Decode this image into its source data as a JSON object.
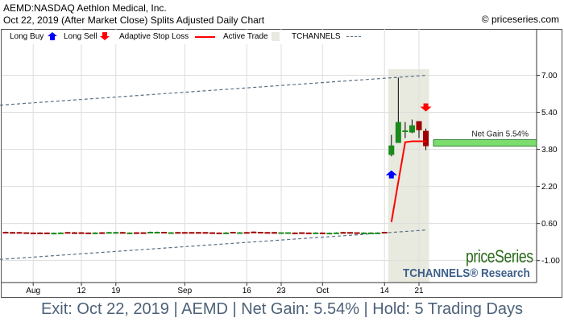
{
  "header": {
    "title": "AEMD:NASDAQ Aethlon Medical, Inc.",
    "subtitle": "Oct 22, 2019 (After Market Close)  Splits Adjusted Daily Chart",
    "copyright": "© priceseries.com"
  },
  "legend": {
    "long_buy": "Long Buy",
    "long_sell": "Long Sell",
    "stop_loss": "Adaptive Stop Loss",
    "active_trade": "Active Trade",
    "tchannels": "TCHANNELS"
  },
  "watermark": {
    "brand": "priceSeries",
    "research": "TCHANNELS® Research"
  },
  "caption": "Exit: Oct 22, 2019 | AEMD | Net Gain: 5.54% | Hold: 5 Trading Days",
  "colors": {
    "up": "#1a8a1a",
    "down": "#a00000",
    "stop": "#ff0000",
    "buy": "#0000ff",
    "sell": "#ff0000",
    "active": "#e8eadf",
    "channel": "#5a6e84",
    "gain_bar": "#7ddc6e"
  },
  "chart_data": {
    "type": "candlestick",
    "ylim": [
      -1.95,
      9.0
    ],
    "y_ticks": [
      "7.00",
      "5.40",
      "3.80",
      "2.20",
      "0.60",
      "-1.00"
    ],
    "x_ticks": [
      {
        "date": "2019-08-01",
        "label": "Aug"
      },
      {
        "date": "2019-08-12",
        "label": "12"
      },
      {
        "date": "2019-08-19",
        "label": "19"
      },
      {
        "date": "2019-09-03",
        "label": "Sep"
      },
      {
        "date": "2019-09-16",
        "label": "16"
      },
      {
        "date": "2019-09-23",
        "label": "23"
      },
      {
        "date": "2019-10-01",
        "label": "Oct"
      },
      {
        "date": "2019-10-14",
        "label": "14"
      },
      {
        "date": "2019-10-21",
        "label": "21"
      }
    ],
    "grid": true,
    "candles_columns": [
      "date",
      "open",
      "high",
      "low",
      "close"
    ],
    "candles": [
      [
        "2019-07-26",
        0.24,
        0.25,
        0.22,
        0.23
      ],
      [
        "2019-07-29",
        0.23,
        0.24,
        0.21,
        0.22
      ],
      [
        "2019-07-30",
        0.23,
        0.23,
        0.21,
        0.21
      ],
      [
        "2019-07-31",
        0.22,
        0.22,
        0.18,
        0.19
      ],
      [
        "2019-08-01",
        0.21,
        0.21,
        0.16,
        0.17
      ],
      [
        "2019-08-02",
        0.21,
        0.22,
        0.19,
        0.2
      ],
      [
        "2019-08-05",
        0.21,
        0.21,
        0.19,
        0.2
      ],
      [
        "2019-08-06",
        0.19,
        0.21,
        0.19,
        0.2
      ],
      [
        "2019-08-07",
        0.2,
        0.22,
        0.2,
        0.21
      ],
      [
        "2019-08-08",
        0.23,
        0.23,
        0.2,
        0.21
      ],
      [
        "2019-08-09",
        0.22,
        0.23,
        0.21,
        0.21
      ],
      [
        "2019-08-12",
        0.22,
        0.23,
        0.2,
        0.21
      ],
      [
        "2019-08-13",
        0.21,
        0.21,
        0.17,
        0.18
      ],
      [
        "2019-08-14",
        0.2,
        0.22,
        0.2,
        0.21
      ],
      [
        "2019-08-15",
        0.22,
        0.23,
        0.21,
        0.21
      ],
      [
        "2019-08-16",
        0.21,
        0.24,
        0.21,
        0.23
      ],
      [
        "2019-08-19",
        0.22,
        0.24,
        0.22,
        0.23
      ],
      [
        "2019-08-20",
        0.23,
        0.24,
        0.21,
        0.22
      ],
      [
        "2019-08-21",
        0.2,
        0.22,
        0.2,
        0.21
      ],
      [
        "2019-08-22",
        0.22,
        0.22,
        0.19,
        0.2
      ],
      [
        "2019-08-23",
        0.22,
        0.22,
        0.19,
        0.2
      ],
      [
        "2019-08-26",
        0.22,
        0.25,
        0.22,
        0.24
      ],
      [
        "2019-08-27",
        0.22,
        0.25,
        0.22,
        0.24
      ],
      [
        "2019-08-28",
        0.24,
        0.24,
        0.21,
        0.22
      ],
      [
        "2019-08-29",
        0.21,
        0.23,
        0.21,
        0.22
      ],
      [
        "2019-08-30",
        0.23,
        0.23,
        0.21,
        0.22
      ],
      [
        "2019-09-03",
        0.23,
        0.23,
        0.21,
        0.22
      ],
      [
        "2019-09-04",
        0.23,
        0.23,
        0.2,
        0.21
      ],
      [
        "2019-09-05",
        0.23,
        0.23,
        0.21,
        0.22
      ],
      [
        "2019-09-06",
        0.23,
        0.23,
        0.21,
        0.22
      ],
      [
        "2019-09-09",
        0.22,
        0.22,
        0.18,
        0.19
      ],
      [
        "2019-09-10",
        0.21,
        0.21,
        0.19,
        0.2
      ],
      [
        "2019-09-11",
        0.2,
        0.23,
        0.2,
        0.21
      ],
      [
        "2019-09-12",
        0.24,
        0.24,
        0.22,
        0.22
      ],
      [
        "2019-09-13",
        0.21,
        0.23,
        0.21,
        0.22
      ],
      [
        "2019-09-16",
        0.23,
        0.23,
        0.21,
        0.22
      ],
      [
        "2019-09-17",
        0.25,
        0.25,
        0.23,
        0.24
      ],
      [
        "2019-09-18",
        0.24,
        0.24,
        0.2,
        0.21
      ],
      [
        "2019-09-19",
        0.23,
        0.23,
        0.21,
        0.22
      ],
      [
        "2019-09-20",
        0.23,
        0.24,
        0.21,
        0.22
      ],
      [
        "2019-09-23",
        0.21,
        0.22,
        0.21,
        0.22
      ],
      [
        "2019-09-24",
        0.21,
        0.22,
        0.21,
        0.22
      ],
      [
        "2019-09-25",
        0.21,
        0.21,
        0.2,
        0.2
      ],
      [
        "2019-09-26",
        0.22,
        0.22,
        0.2,
        0.21
      ],
      [
        "2019-09-27",
        0.21,
        0.21,
        0.2,
        0.2
      ],
      [
        "2019-09-30",
        0.2,
        0.22,
        0.2,
        0.21
      ],
      [
        "2019-10-01",
        0.21,
        0.21,
        0.17,
        0.18
      ],
      [
        "2019-10-02",
        0.19,
        0.21,
        0.19,
        0.2
      ],
      [
        "2019-10-03",
        0.2,
        0.22,
        0.2,
        0.21
      ],
      [
        "2019-10-04",
        0.23,
        0.24,
        0.21,
        0.22
      ],
      [
        "2019-10-07",
        0.23,
        0.23,
        0.2,
        0.21
      ],
      [
        "2019-10-08",
        0.22,
        0.22,
        0.18,
        0.2
      ],
      [
        "2019-10-09",
        0.19,
        0.22,
        0.19,
        0.21
      ],
      [
        "2019-10-10",
        0.2,
        0.22,
        0.2,
        0.21
      ],
      [
        "2019-10-11",
        0.2,
        0.22,
        0.2,
        0.21
      ],
      [
        "2019-10-14",
        0.24,
        0.24,
        0.21,
        0.22
      ],
      [
        "2019-10-15",
        3.56,
        4.43,
        3.5,
        3.97
      ],
      [
        "2019-10-16",
        4.08,
        6.9,
        4.08,
        4.98
      ],
      [
        "2019-10-17",
        4.58,
        4.98,
        4.29,
        4.62
      ],
      [
        "2019-10-18",
        4.53,
        5.09,
        4.5,
        4.84
      ],
      [
        "2019-10-21",
        5.02,
        5.02,
        4.29,
        4.63
      ],
      [
        "2019-10-22",
        4.6,
        4.7,
        3.77,
        3.94
      ]
    ],
    "stop_loss": [
      {
        "date": "2019-10-15",
        "value": 0.66
      },
      {
        "date": "2019-10-16",
        "value": 2.4
      },
      {
        "date": "2019-10-17",
        "value": 4.11
      },
      {
        "date": "2019-10-18",
        "value": 4.15
      },
      {
        "date": "2019-10-21",
        "value": 4.15
      },
      {
        "date": "2019-10-22",
        "value": 4.15
      }
    ],
    "active_trade": {
      "start": "2019-10-15",
      "end": "2019-10-22"
    },
    "signals": [
      {
        "type": "long-buy",
        "date": "2019-10-15",
        "value": 2.72
      },
      {
        "type": "long-sell",
        "date": "2019-10-22",
        "value": 5.61
      }
    ],
    "channels": {
      "upper": [
        {
          "date": "2019-07-26",
          "value": 5.71
        },
        {
          "date": "2019-10-22",
          "value": 7.0
        }
      ],
      "lower": [
        {
          "date": "2019-07-26",
          "value": -0.95
        },
        {
          "date": "2019-10-22",
          "value": 0.32
        }
      ]
    },
    "net_gain": {
      "label": "Net Gain 5.54%",
      "value": 4.08
    }
  }
}
